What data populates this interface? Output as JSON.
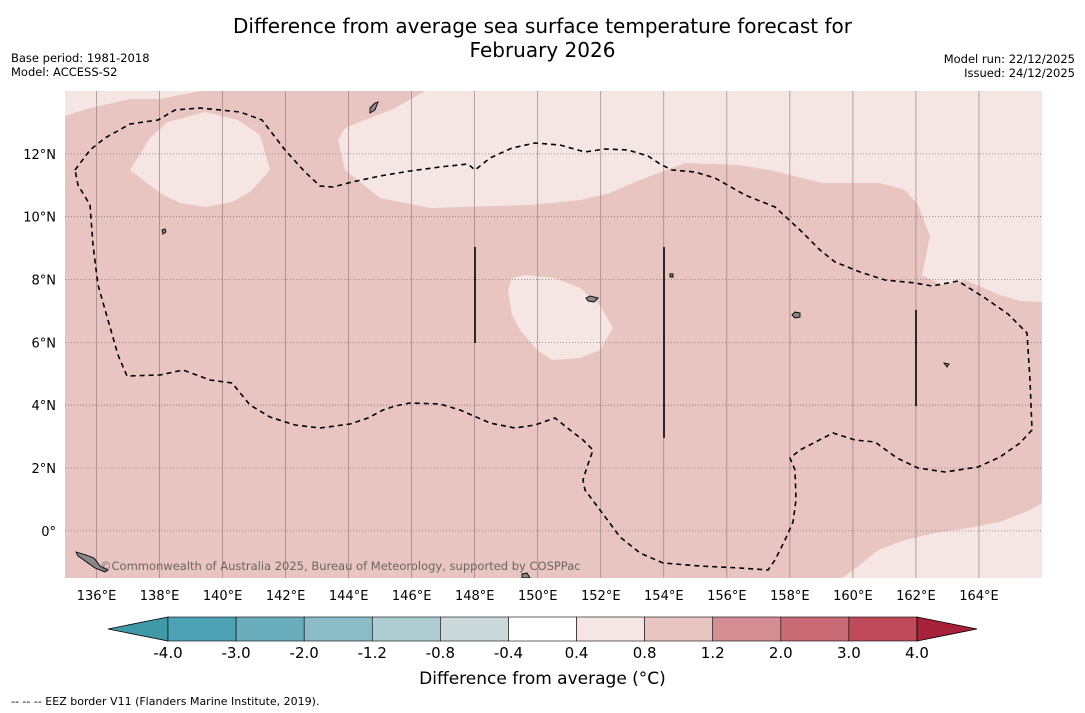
{
  "title": {
    "line1": "Difference from average sea surface temperature forecast for",
    "line2": "February 2026"
  },
  "meta": {
    "base_period": "Base period: 1981-2018",
    "model": "Model: ACCESS-S2",
    "model_run": "Model run: 22/12/2025",
    "issued": "Issued: 24/12/2025"
  },
  "map": {
    "lon_labels": [
      "136°E",
      "138°E",
      "140°E",
      "142°E",
      "144°E",
      "146°E",
      "148°E",
      "150°E",
      "152°E",
      "154°E",
      "156°E",
      "158°E",
      "160°E",
      "162°E",
      "164°E"
    ],
    "lon_values": [
      136,
      138,
      140,
      142,
      144,
      146,
      148,
      150,
      152,
      154,
      156,
      158,
      160,
      162,
      164
    ],
    "lat_labels": [
      "12°N",
      "10°N",
      "8°N",
      "6°N",
      "4°N",
      "2°N",
      "0°"
    ],
    "lat_values": [
      12,
      10,
      8,
      6,
      4,
      2,
      0
    ],
    "extent": {
      "lon_min": 135,
      "lon_max": 166,
      "lat_min": -1.5,
      "lat_max": 14
    },
    "copyright": "©Commonwealth of Australia 2025, Bureau of Meteorology, supported by COSPPac",
    "fill_colors": {
      "band_0_4_0_8": "#f5e6e4",
      "band_0_8_1_2": "#e8c5c1"
    }
  },
  "colorbar": {
    "ticks": [
      "-4.0",
      "-3.0",
      "-2.0",
      "-1.2",
      "-0.8",
      "-0.4",
      "0.4",
      "0.8",
      "1.2",
      "2.0",
      "3.0",
      "4.0"
    ],
    "colors": [
      "#3f9aa8",
      "#4da3b4",
      "#6aaebe",
      "#8bbcc8",
      "#adcdd2",
      "#cbd9da",
      "#ffffff",
      "#f5e6e4",
      "#e8c5c1",
      "#d48d93",
      "#c96a74",
      "#bf4a5a",
      "#a8213b"
    ],
    "label": "Difference from average (°C)"
  },
  "footer": "-- -- -- EEZ border V11 (Flanders Marine Institute, 2019)."
}
